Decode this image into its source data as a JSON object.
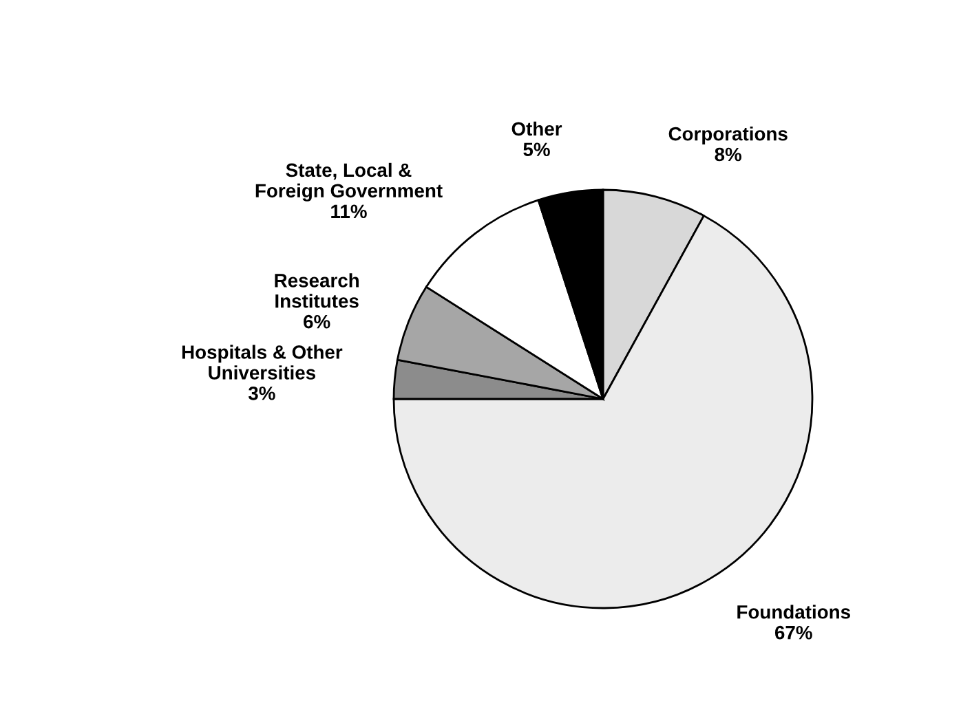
{
  "chart_data": {
    "type": "pie",
    "categories": [
      "Corporations",
      "Foundations",
      "Hospitals & Other\nUniversities",
      "Research\nInstitutes",
      "State, Local &\nForeign Government",
      "Other"
    ],
    "values": [
      8,
      67,
      3,
      6,
      11,
      5
    ],
    "value_labels": [
      "8%",
      "67%",
      "3%",
      "6%",
      "11%",
      "5%"
    ],
    "colors": [
      "#d8d8d8",
      "#ececec",
      "#8c8c8c",
      "#a6a6a6",
      "#ffffff",
      "#000000"
    ]
  }
}
